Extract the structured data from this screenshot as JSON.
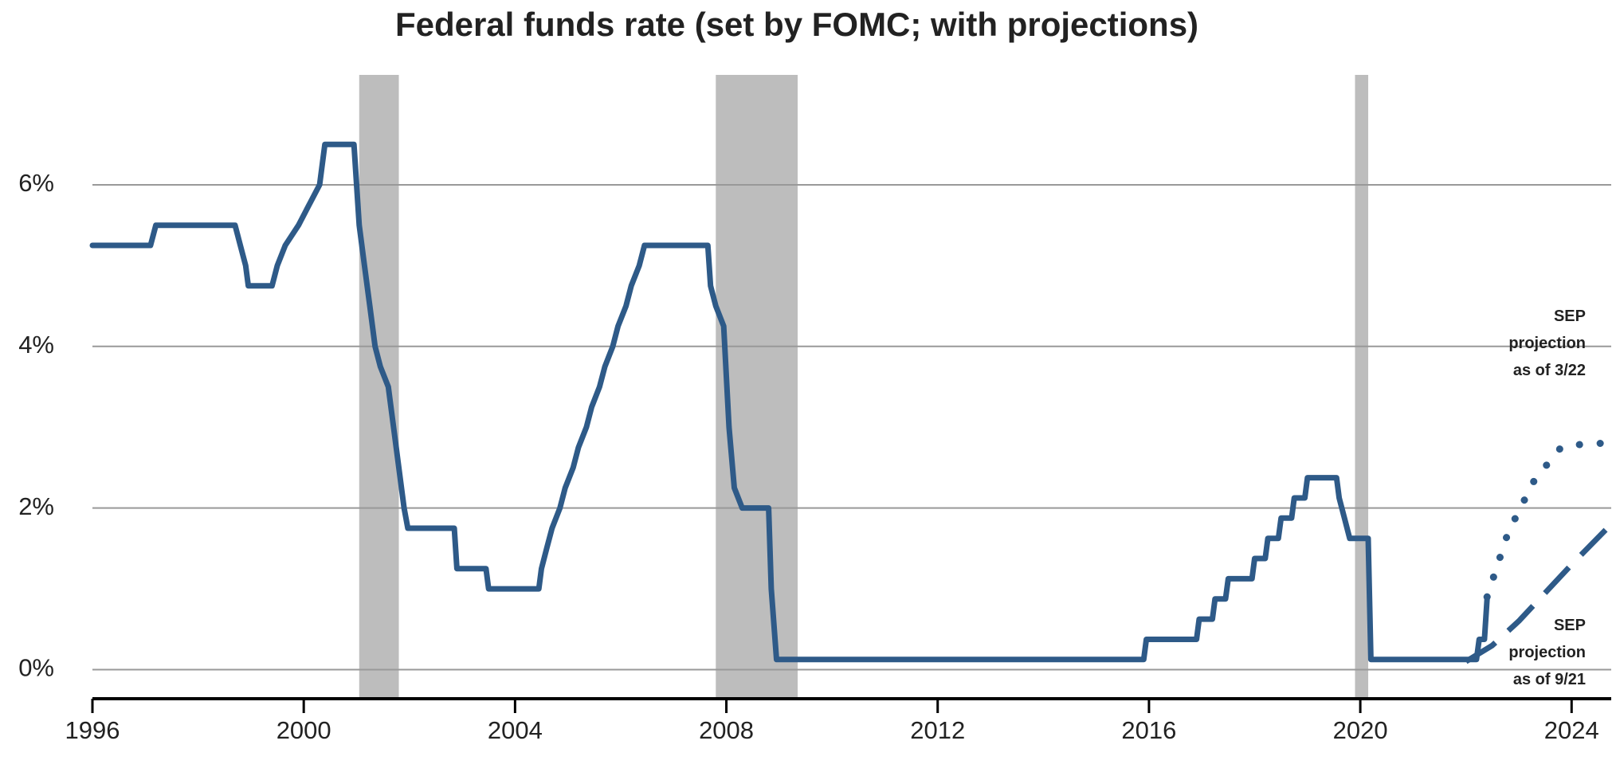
{
  "chart_data": {
    "type": "line",
    "title": "Federal funds rate (set by FOMC; with projections)",
    "xlim": [
      1996,
      2024.75
    ],
    "ylim": [
      -0.36,
      7.36
    ],
    "xticks": [
      1996,
      2000,
      2004,
      2008,
      2012,
      2016,
      2020,
      2024
    ],
    "yticks": [
      {
        "value": 0,
        "label": "0%"
      },
      {
        "value": 2,
        "label": "2%"
      },
      {
        "value": 4,
        "label": "4%"
      },
      {
        "value": 6,
        "label": "6%"
      }
    ],
    "grid": true,
    "shading_color": "#bdbdbd",
    "shaded_ranges": [
      [
        2001.05,
        2001.8
      ],
      [
        2007.8,
        2009.35
      ],
      [
        2019.9,
        2020.15
      ]
    ],
    "series": [
      {
        "color": "#2e5a88",
        "style": "solid",
        "x": [
          1996.0,
          1997.1,
          1997.2,
          1998.7,
          1998.8,
          1998.9,
          1998.95,
          1999.4,
          1999.5,
          1999.65,
          1999.9,
          2000.1,
          2000.3,
          2000.4,
          2000.95,
          2001.05,
          2001.15,
          2001.25,
          2001.35,
          2001.45,
          2001.6,
          2001.7,
          2001.8,
          2001.9,
          2001.97,
          2002.85,
          2002.9,
          2003.45,
          2003.5,
          2004.45,
          2004.5,
          2004.6,
          2004.7,
          2004.85,
          2004.95,
          2005.1,
          2005.2,
          2005.35,
          2005.45,
          2005.6,
          2005.7,
          2005.85,
          2005.95,
          2006.1,
          2006.2,
          2006.35,
          2006.45,
          2007.65,
          2007.7,
          2007.8,
          2007.95,
          2008.05,
          2008.15,
          2008.3,
          2008.8,
          2008.85,
          2008.95,
          2015.9,
          2015.95,
          2016.9,
          2016.95,
          2017.2,
          2017.25,
          2017.45,
          2017.5,
          2017.95,
          2018.0,
          2018.2,
          2018.25,
          2018.45,
          2018.5,
          2018.7,
          2018.75,
          2018.95,
          2019.0,
          2019.55,
          2019.6,
          2019.7,
          2019.8,
          2020.15,
          2020.2,
          2022.2,
          2022.25,
          2022.35,
          2022.4
        ],
        "values": [
          5.25,
          5.25,
          5.5,
          5.5,
          5.25,
          5.0,
          4.75,
          4.75,
          5.0,
          5.25,
          5.5,
          5.75,
          6.0,
          6.5,
          6.5,
          5.5,
          5.0,
          4.5,
          4.0,
          3.75,
          3.5,
          3.0,
          2.5,
          2.0,
          1.75,
          1.75,
          1.25,
          1.25,
          1.0,
          1.0,
          1.25,
          1.5,
          1.75,
          2.0,
          2.25,
          2.5,
          2.75,
          3.0,
          3.25,
          3.5,
          3.75,
          4.0,
          4.25,
          4.5,
          4.75,
          5.0,
          5.25,
          5.25,
          4.75,
          4.5,
          4.25,
          3.0,
          2.25,
          2.0,
          2.0,
          1.0,
          0.125,
          0.125,
          0.375,
          0.375,
          0.625,
          0.625,
          0.875,
          0.875,
          1.125,
          1.125,
          1.375,
          1.375,
          1.625,
          1.625,
          1.875,
          1.875,
          2.125,
          2.125,
          2.375,
          2.375,
          2.125,
          1.875,
          1.625,
          1.625,
          0.125,
          0.125,
          0.375,
          0.375,
          0.875
        ]
      },
      {
        "name": "SEP projection as of 3/22",
        "color": "#2e5a88",
        "style": "dotted",
        "x": [
          2022.4,
          2022.8,
          2023.3,
          2023.8,
          2024.3,
          2024.75
        ],
        "values": [
          0.9,
          1.7,
          2.35,
          2.75,
          2.8,
          2.8
        ]
      },
      {
        "name": "SEP projection as of 9/21",
        "color": "#2e5a88",
        "style": "dashed",
        "x": [
          2022.0,
          2022.5,
          2023.0,
          2023.5,
          2024.0,
          2024.75
        ],
        "values": [
          0.1,
          0.3,
          0.6,
          0.95,
          1.3,
          1.8
        ]
      }
    ]
  }
}
